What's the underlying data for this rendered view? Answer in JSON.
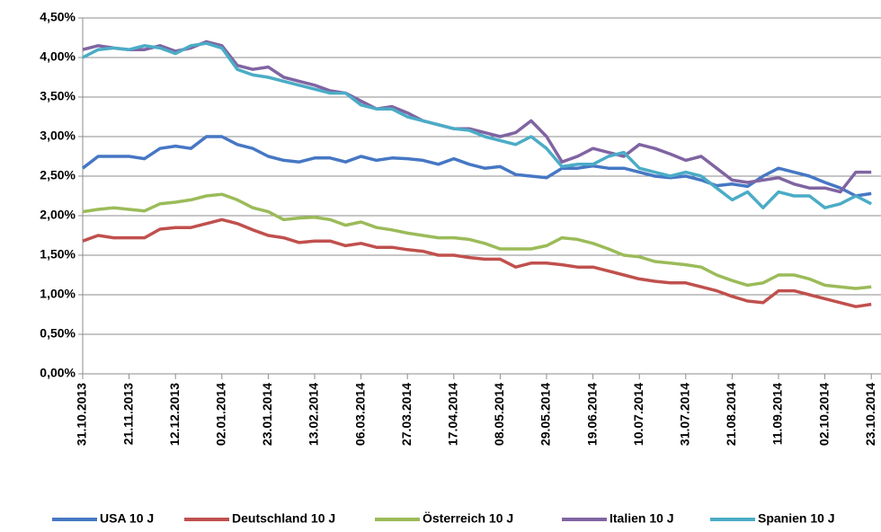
{
  "chart_data": {
    "type": "line",
    "categories": [
      "31.10.2013",
      null,
      null,
      "21.11.2013",
      null,
      null,
      "12.12.2013",
      null,
      null,
      "02.01.2014",
      null,
      null,
      "23.01.2014",
      null,
      null,
      "13.02.2014",
      null,
      null,
      "06.03.2014",
      null,
      null,
      "27.03.2014",
      null,
      null,
      "17.04.2014",
      null,
      null,
      "08.05.2014",
      null,
      null,
      "29.05.2014",
      null,
      null,
      "19.06.2014",
      null,
      null,
      "10.07.2014",
      null,
      null,
      "31.07.2014",
      null,
      null,
      "21.08.2014",
      null,
      null,
      "11.09.2014",
      null,
      null,
      "02.10.2014",
      null,
      null,
      "23.10.2014"
    ],
    "series": [
      {
        "name": "USA 10 J",
        "color": "#4677c4",
        "values": [
          2.6,
          2.75,
          2.75,
          2.75,
          2.72,
          2.85,
          2.88,
          2.85,
          3.0,
          3.0,
          2.9,
          2.85,
          2.75,
          2.7,
          2.68,
          2.73,
          2.73,
          2.68,
          2.75,
          2.7,
          2.73,
          2.72,
          2.7,
          2.65,
          2.72,
          2.65,
          2.6,
          2.62,
          2.52,
          2.5,
          2.48,
          2.6,
          2.6,
          2.63,
          2.6,
          2.6,
          2.55,
          2.5,
          2.48,
          2.5,
          2.45,
          2.38,
          2.4,
          2.37,
          2.5,
          2.6,
          2.55,
          2.5,
          2.42,
          2.35,
          2.25,
          2.28
        ]
      },
      {
        "name": "Deutschland 10 J",
        "color": "#c0504d",
        "values": [
          1.68,
          1.75,
          1.72,
          1.72,
          1.72,
          1.83,
          1.85,
          1.85,
          1.9,
          1.95,
          1.9,
          1.82,
          1.75,
          1.72,
          1.66,
          1.68,
          1.68,
          1.62,
          1.65,
          1.6,
          1.6,
          1.57,
          1.55,
          1.5,
          1.5,
          1.47,
          1.45,
          1.45,
          1.35,
          1.4,
          1.4,
          1.38,
          1.35,
          1.35,
          1.3,
          1.25,
          1.2,
          1.17,
          1.15,
          1.15,
          1.1,
          1.05,
          0.98,
          0.92,
          0.9,
          1.05,
          1.05,
          1.0,
          0.95,
          0.9,
          0.85,
          0.88
        ]
      },
      {
        "name": "Österreich 10 J",
        "color": "#9bbb59",
        "values": [
          2.05,
          2.08,
          2.1,
          2.08,
          2.06,
          2.15,
          2.17,
          2.2,
          2.25,
          2.27,
          2.2,
          2.1,
          2.05,
          1.95,
          1.97,
          1.98,
          1.95,
          1.88,
          1.92,
          1.85,
          1.82,
          1.78,
          1.75,
          1.72,
          1.72,
          1.7,
          1.65,
          1.58,
          1.58,
          1.58,
          1.62,
          1.72,
          1.7,
          1.65,
          1.58,
          1.5,
          1.48,
          1.42,
          1.4,
          1.38,
          1.35,
          1.25,
          1.18,
          1.12,
          1.15,
          1.25,
          1.25,
          1.2,
          1.12,
          1.1,
          1.08,
          1.1
        ]
      },
      {
        "name": "Italien 10 J",
        "color": "#8064a2",
        "values": [
          4.1,
          4.15,
          4.12,
          4.1,
          4.1,
          4.15,
          4.08,
          4.12,
          4.2,
          4.15,
          3.9,
          3.85,
          3.88,
          3.75,
          3.7,
          3.65,
          3.58,
          3.55,
          3.45,
          3.35,
          3.38,
          3.3,
          3.2,
          3.15,
          3.1,
          3.1,
          3.05,
          3.0,
          3.05,
          3.2,
          3.0,
          2.68,
          2.75,
          2.85,
          2.8,
          2.75,
          2.9,
          2.85,
          2.78,
          2.7,
          2.75,
          2.6,
          2.45,
          2.42,
          2.45,
          2.48,
          2.4,
          2.35,
          2.35,
          2.3,
          2.55,
          2.55
        ]
      },
      {
        "name": "Spanien 10 J",
        "color": "#4bacc6",
        "values": [
          4.0,
          4.1,
          4.12,
          4.1,
          4.15,
          4.12,
          4.05,
          4.15,
          4.18,
          4.12,
          3.85,
          3.78,
          3.75,
          3.7,
          3.65,
          3.6,
          3.55,
          3.55,
          3.4,
          3.35,
          3.35,
          3.25,
          3.2,
          3.15,
          3.1,
          3.08,
          3.0,
          2.95,
          2.9,
          3.0,
          2.85,
          2.62,
          2.65,
          2.65,
          2.75,
          2.8,
          2.6,
          2.55,
          2.5,
          2.55,
          2.5,
          2.35,
          2.2,
          2.3,
          2.1,
          2.3,
          2.25,
          2.25,
          2.1,
          2.15,
          2.25,
          2.15
        ]
      }
    ],
    "ylim": [
      0,
      4.5
    ],
    "yticks": [
      {
        "value": 0,
        "label": "0,00%"
      },
      {
        "value": 0.5,
        "label": "0,50%"
      },
      {
        "value": 1,
        "label": "1,00%"
      },
      {
        "value": 1.5,
        "label": "1,50%"
      },
      {
        "value": 2,
        "label": "2,00%"
      },
      {
        "value": 2.5,
        "label": "2,50%"
      },
      {
        "value": 3,
        "label": "3,00%"
      },
      {
        "value": 3.5,
        "label": "3,50%"
      },
      {
        "value": 4,
        "label": "4,00%"
      },
      {
        "value": 4.5,
        "label": "4,50%"
      }
    ],
    "grid": true,
    "legend": "bottom"
  }
}
